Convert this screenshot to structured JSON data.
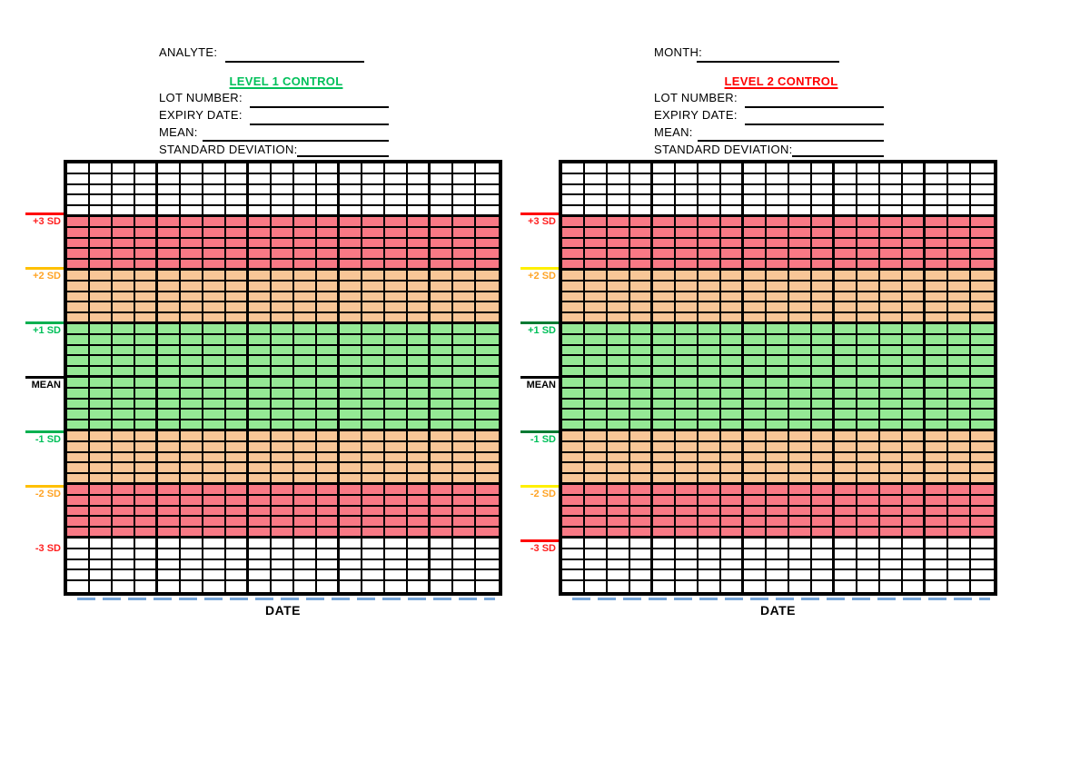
{
  "colors": {
    "band_red": "#F97985",
    "band_orange": "#F8C697",
    "band_green": "#95E995",
    "band_white": "#FFFFFF",
    "grid_line": "#000000",
    "date_dash_blue": "#79A8DB"
  },
  "grid": {
    "columns": 19,
    "rows": 40,
    "thick_column_every": 4,
    "thick_row_every": 5,
    "row_bands": [
      {
        "name": "above-plus-3sd",
        "rows": 5,
        "color": "white"
      },
      {
        "name": "plus3-to-plus2",
        "rows": 5,
        "color": "red"
      },
      {
        "name": "plus2-to-plus1",
        "rows": 5,
        "color": "orange"
      },
      {
        "name": "plus1-to-minus1-mean",
        "rows": 10,
        "color": "green"
      },
      {
        "name": "minus1-to-minus2",
        "rows": 5,
        "color": "orange"
      },
      {
        "name": "minus2-to-minus3",
        "rows": 5,
        "color": "red"
      },
      {
        "name": "below-minus-3sd",
        "rows": 5,
        "color": "white"
      }
    ]
  },
  "panels": [
    {
      "name": "level-1-control",
      "top_field": {
        "label": "ANALYTE:"
      },
      "title": {
        "text": "LEVEL 1 CONTROL",
        "color": "#00C05A"
      },
      "fields": [
        {
          "label": "LOT NUMBER:"
        },
        {
          "label": "EXPIRY DATE:"
        },
        {
          "label": "MEAN:"
        },
        {
          "label": "STANDARD DEVIATION:"
        }
      ],
      "sd_markers": [
        {
          "label": "+3 SD",
          "row": 5,
          "text_color": "#FF2020",
          "line_color": "#FF0000"
        },
        {
          "label": "+2 SD",
          "row": 10,
          "text_color": "#FFA426",
          "line_color": "#FFC000"
        },
        {
          "label": "+1 SD",
          "row": 15,
          "text_color": "#00C05A",
          "line_color": "#00B050"
        },
        {
          "label": "MEAN",
          "row": 20,
          "text_color": "#000000",
          "line_color": "#000000"
        },
        {
          "label": "-1 SD",
          "row": 25,
          "text_color": "#00C05A",
          "line_color": "#00B050"
        },
        {
          "label": "-2 SD",
          "row": 30,
          "text_color": "#FFA426",
          "line_color": "#FFC000"
        },
        {
          "label": "-3 SD",
          "row": 35,
          "text_color": "#FF2020",
          "line_color": null
        }
      ],
      "date_label": "DATE"
    },
    {
      "name": "level-2-control",
      "top_field": {
        "label": "MONTH:"
      },
      "title": {
        "text": "LEVEL 2 CONTROL",
        "color": "#FF0000"
      },
      "fields": [
        {
          "label": "LOT NUMBER:"
        },
        {
          "label": "EXPIRY DATE:"
        },
        {
          "label": "MEAN:"
        },
        {
          "label": "STANDARD DEVIATION:"
        }
      ],
      "sd_markers": [
        {
          "label": "+3 SD",
          "row": 5,
          "text_color": "#FF2020",
          "line_color": "#FF0000"
        },
        {
          "label": "+2 SD",
          "row": 10,
          "text_color": "#FFA426",
          "line_color": "#FFF000"
        },
        {
          "label": "+1 SD",
          "row": 15,
          "text_color": "#00C05A",
          "line_color": "#007A33"
        },
        {
          "label": "MEAN",
          "row": 20,
          "text_color": "#000000",
          "line_color": "#000000"
        },
        {
          "label": "-1 SD",
          "row": 25,
          "text_color": "#00C05A",
          "line_color": "#007A33"
        },
        {
          "label": "-2 SD",
          "row": 30,
          "text_color": "#FFA426",
          "line_color": "#FFF000"
        },
        {
          "label": "-3 SD",
          "row": 35,
          "text_color": "#FF2020",
          "line_color": "#FF0000"
        }
      ],
      "date_label": "DATE"
    }
  ]
}
